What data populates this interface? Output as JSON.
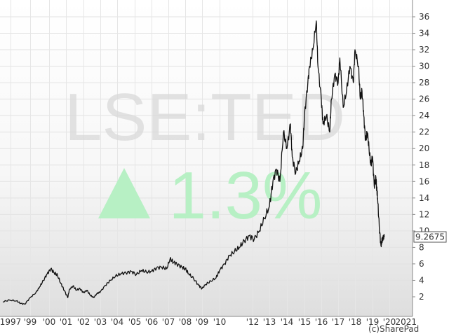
{
  "chart_data": {
    "type": "line",
    "watermark_ticker": "LSE:TED",
    "change_text": "1.3%",
    "change_direction": "up",
    "last_value_label": "9.2675",
    "credit": "(c)SharePad",
    "x_tick_labels": [
      "1997",
      "'99",
      "'00",
      "'01",
      "'02",
      "'03",
      "'04",
      "'05",
      "'06",
      "'07",
      "'08",
      "'09",
      "'10",
      "'12",
      "'13",
      "'14",
      "'15",
      "'16",
      "'17",
      "'18",
      "'19",
      "'20",
      "2021"
    ],
    "y_tick_labels": [
      "2",
      "4",
      "6",
      "8",
      "10",
      "12",
      "14",
      "16",
      "18",
      "20",
      "22",
      "24",
      "26",
      "28",
      "30",
      "32",
      "34",
      "36"
    ],
    "ylim": [
      0,
      37
    ],
    "grid": true,
    "series": [
      {
        "x": [
          1997.0,
          1997.5,
          1998.0,
          1998.3,
          1998.6,
          1999.0,
          1999.3,
          1999.5,
          1999.7,
          1999.9,
          2000.1,
          2000.3,
          2000.5,
          2000.7,
          2000.9,
          2001.1,
          2001.2,
          2001.4,
          2001.6,
          2001.8,
          2002.0,
          2002.2,
          2002.4,
          2002.6,
          2002.8,
          2003.0,
          2003.3,
          2003.6,
          2003.9,
          2004.2,
          2004.5,
          2004.8,
          2005.1,
          2005.4,
          2005.7,
          2006.0,
          2006.3,
          2006.6,
          2006.9,
          2007.1,
          2007.3,
          2007.5,
          2007.8,
          2008.0,
          2008.2,
          2008.5,
          2008.8,
          2009.0,
          2009.2,
          2009.5,
          2009.8,
          2010.0,
          2010.3,
          2010.6,
          2010.9,
          2011.2,
          2011.5,
          2011.8,
          2012.1,
          2012.4,
          2012.7,
          2013.0,
          2013.2,
          2013.4,
          2013.6,
          2013.8,
          2014.0,
          2014.2,
          2014.3,
          2014.5,
          2014.7,
          2014.9,
          2015.0,
          2015.2,
          2015.3,
          2015.5,
          2015.7,
          2015.8,
          2016.0,
          2016.1,
          2016.3,
          2016.5,
          2016.6,
          2016.8,
          2017.0,
          2017.1,
          2017.3,
          2017.5,
          2017.7,
          2017.9,
          2018.0,
          2018.2,
          2018.3,
          2018.4,
          2018.5,
          2018.6,
          2018.7,
          2018.8,
          2018.9,
          2019.0,
          2019.1,
          2019.2,
          2019.25,
          2019.3,
          2019.4,
          2019.5,
          2019.55,
          2019.6,
          2019.7
        ],
        "values": [
          1.4,
          1.6,
          1.5,
          1.2,
          1.1,
          1.9,
          2.5,
          3.2,
          4.0,
          4.8,
          5.4,
          4.9,
          4.6,
          3.6,
          2.8,
          1.9,
          2.9,
          3.3,
          2.8,
          3.0,
          2.5,
          2.8,
          2.2,
          1.9,
          2.4,
          2.6,
          3.4,
          4.0,
          4.5,
          4.8,
          4.9,
          5.1,
          4.7,
          5.2,
          5.0,
          5.1,
          5.5,
          5.6,
          5.4,
          6.6,
          6.2,
          6.0,
          5.6,
          5.4,
          4.8,
          4.2,
          3.4,
          3.0,
          3.5,
          3.9,
          4.3,
          5.2,
          6.0,
          7.0,
          7.5,
          8.0,
          8.8,
          9.4,
          9.0,
          10.0,
          11.5,
          13.0,
          16.0,
          17.5,
          16.0,
          22.0,
          20.0,
          23.0,
          19.0,
          17.0,
          18.5,
          20.0,
          24.0,
          28.0,
          30.0,
          32.0,
          35.5,
          30.0,
          26.0,
          23.0,
          24.0,
          22.0,
          26.0,
          29.0,
          28.0,
          31.0,
          25.0,
          27.0,
          30.0,
          28.0,
          32.0,
          30.0,
          26.0,
          27.0,
          24.0,
          21.0,
          22.0,
          20.0,
          18.0,
          19.0,
          15.5,
          16.5,
          15.0,
          14.0,
          10.5,
          8.2,
          8.8,
          9.0,
          9.27
        ]
      }
    ]
  }
}
